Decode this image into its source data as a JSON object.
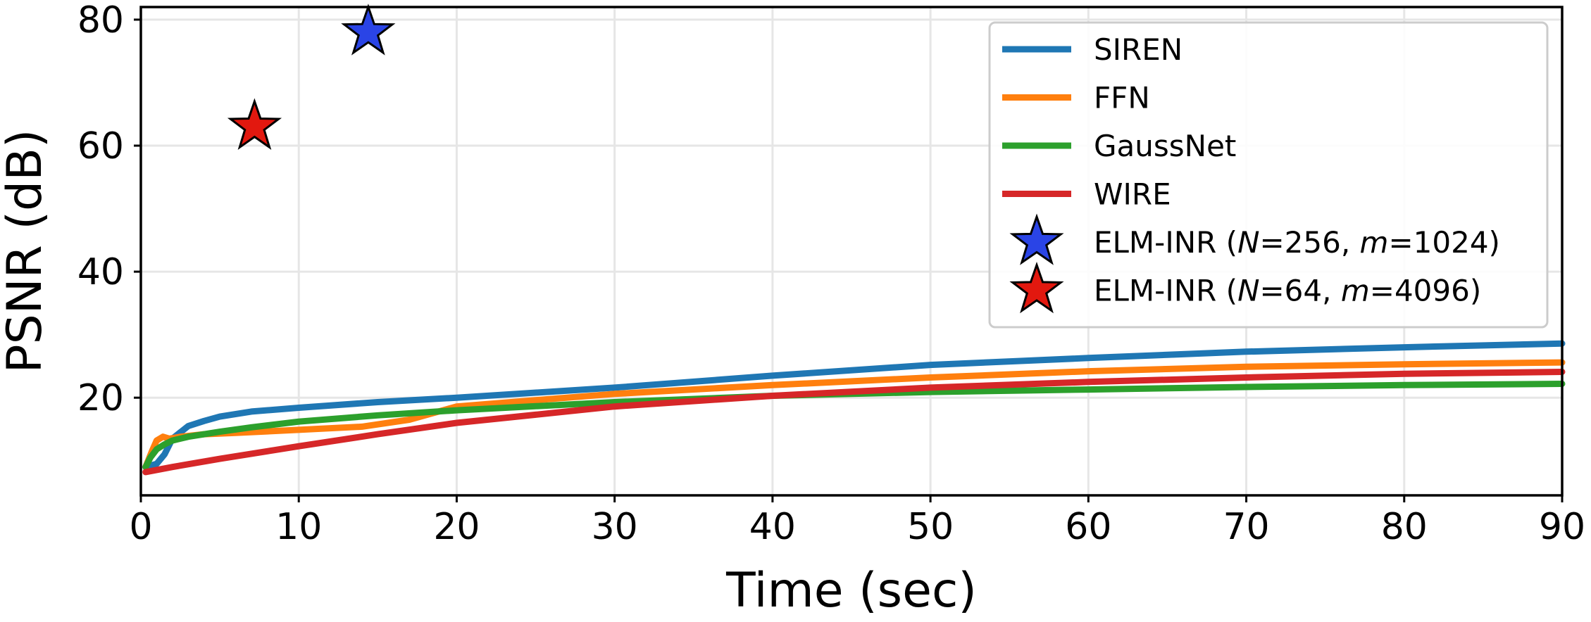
{
  "chart_data": {
    "type": "line",
    "title": "",
    "xlabel": "Time (sec)",
    "ylabel": "PSNR (dB)",
    "xlim": [
      0,
      90
    ],
    "ylim": [
      4.5,
      82
    ],
    "xticks": [
      0,
      10,
      20,
      30,
      40,
      50,
      60,
      70,
      80,
      90
    ],
    "yticks": [
      20,
      40,
      60,
      80
    ],
    "xtick_labels": [
      "0",
      "10",
      "20",
      "30",
      "40",
      "50",
      "60",
      "70",
      "80",
      "90"
    ],
    "ytick_labels": [
      "20",
      "40",
      "60",
      "80"
    ],
    "grid": true,
    "legend_position": "top-right",
    "series": [
      {
        "name": "SIREN",
        "color": "#1f77b4",
        "x": [
          0.3,
          1,
          1.5,
          2,
          3,
          4,
          5,
          7,
          10,
          15,
          20,
          30,
          40,
          50,
          60,
          70,
          80,
          90
        ],
        "y": [
          9,
          9.5,
          11,
          13.5,
          15.5,
          16.3,
          17,
          17.8,
          18.4,
          19.3,
          20,
          21.6,
          23.5,
          25.2,
          26.3,
          27.3,
          28,
          28.6
        ]
      },
      {
        "name": "FFN",
        "color": "#ff7f0e",
        "x": [
          0.3,
          0.7,
          1,
          1.4,
          1.8,
          2.5,
          4,
          6,
          10,
          14,
          17,
          20,
          30,
          40,
          50,
          60,
          70,
          80,
          90
        ],
        "y": [
          9,
          11.5,
          13.2,
          13.8,
          13.5,
          13.8,
          14.2,
          14.4,
          14.9,
          15.4,
          16.5,
          18.6,
          20.6,
          22,
          23.2,
          24.2,
          24.9,
          25.3,
          25.6
        ]
      },
      {
        "name": "GaussNet",
        "color": "#2ca02c",
        "x": [
          0.3,
          0.6,
          1,
          1.5,
          2,
          3,
          5,
          7,
          10,
          15,
          20,
          30,
          40,
          50,
          60,
          70,
          80,
          90
        ],
        "y": [
          9,
          10.5,
          11.8,
          12.6,
          13.2,
          13.8,
          14.6,
          15.3,
          16.2,
          17.2,
          18,
          19.3,
          20.3,
          20.9,
          21.3,
          21.7,
          22,
          22.2
        ]
      },
      {
        "name": "WIRE",
        "color": "#d62728",
        "x": [
          0.3,
          2,
          5,
          10,
          15,
          20,
          25,
          30,
          40,
          50,
          60,
          70,
          80,
          90
        ],
        "y": [
          8.2,
          9,
          10.3,
          12.3,
          14.2,
          16,
          17.3,
          18.6,
          20.3,
          21.6,
          22.5,
          23.2,
          23.8,
          24.1
        ]
      }
    ],
    "markers": [
      {
        "name": "ELM-INR (N=256, m=1024)",
        "label_parts": [
          "ELM-INR (",
          "N",
          "=256, ",
          "m",
          "=1024)"
        ],
        "x": 14.4,
        "y": 78,
        "color": "#2a44e6"
      },
      {
        "name": "ELM-INR (N=64, m=4096)",
        "label_parts": [
          "ELM-INR (",
          "N",
          "=64, ",
          "m",
          "=4096)"
        ],
        "x": 7.2,
        "y": 63,
        "color": "#e2180f"
      }
    ]
  }
}
